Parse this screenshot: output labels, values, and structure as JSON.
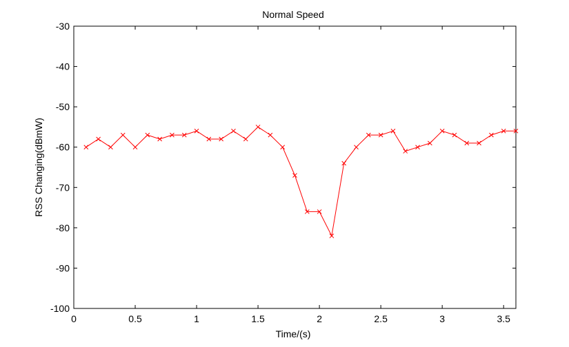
{
  "chart_data": {
    "type": "line",
    "title": "Normal Speed",
    "xlabel": "Time/(s)",
    "ylabel": "RSS Changing(dBmW)",
    "xlim": [
      0,
      3.6
    ],
    "ylim": [
      -100,
      -30
    ],
    "x_ticks": [
      "0",
      "0.5",
      "1",
      "1.5",
      "2",
      "2.5",
      "3",
      "3.5"
    ],
    "y_ticks": [
      "-100",
      "-90",
      "-80",
      "-70",
      "-60",
      "-50",
      "-40",
      "-30"
    ],
    "grid": false,
    "series": [
      {
        "color": "#ff0000",
        "marker": "x",
        "x": [
          0.1,
          0.2,
          0.3,
          0.4,
          0.5,
          0.6,
          0.7,
          0.8,
          0.9,
          1.0,
          1.1,
          1.2,
          1.3,
          1.4,
          1.5,
          1.6,
          1.7,
          1.8,
          1.9,
          2.0,
          2.1,
          2.2,
          2.3,
          2.4,
          2.5,
          2.6,
          2.7,
          2.8,
          2.9,
          3.0,
          3.1,
          3.2,
          3.3,
          3.4,
          3.5,
          3.6
        ],
        "y": [
          -60,
          -58,
          -60,
          -57,
          -60,
          -57,
          -58,
          -57,
          -57,
          -56,
          -58,
          -58,
          -56,
          -58,
          -55,
          -57,
          -60,
          -67,
          -76,
          -76,
          -82,
          -64,
          -60,
          -57,
          -57,
          -56,
          -61,
          -60,
          -59,
          -56,
          -57,
          -59,
          -59,
          -57,
          -56,
          -56
        ]
      }
    ]
  }
}
